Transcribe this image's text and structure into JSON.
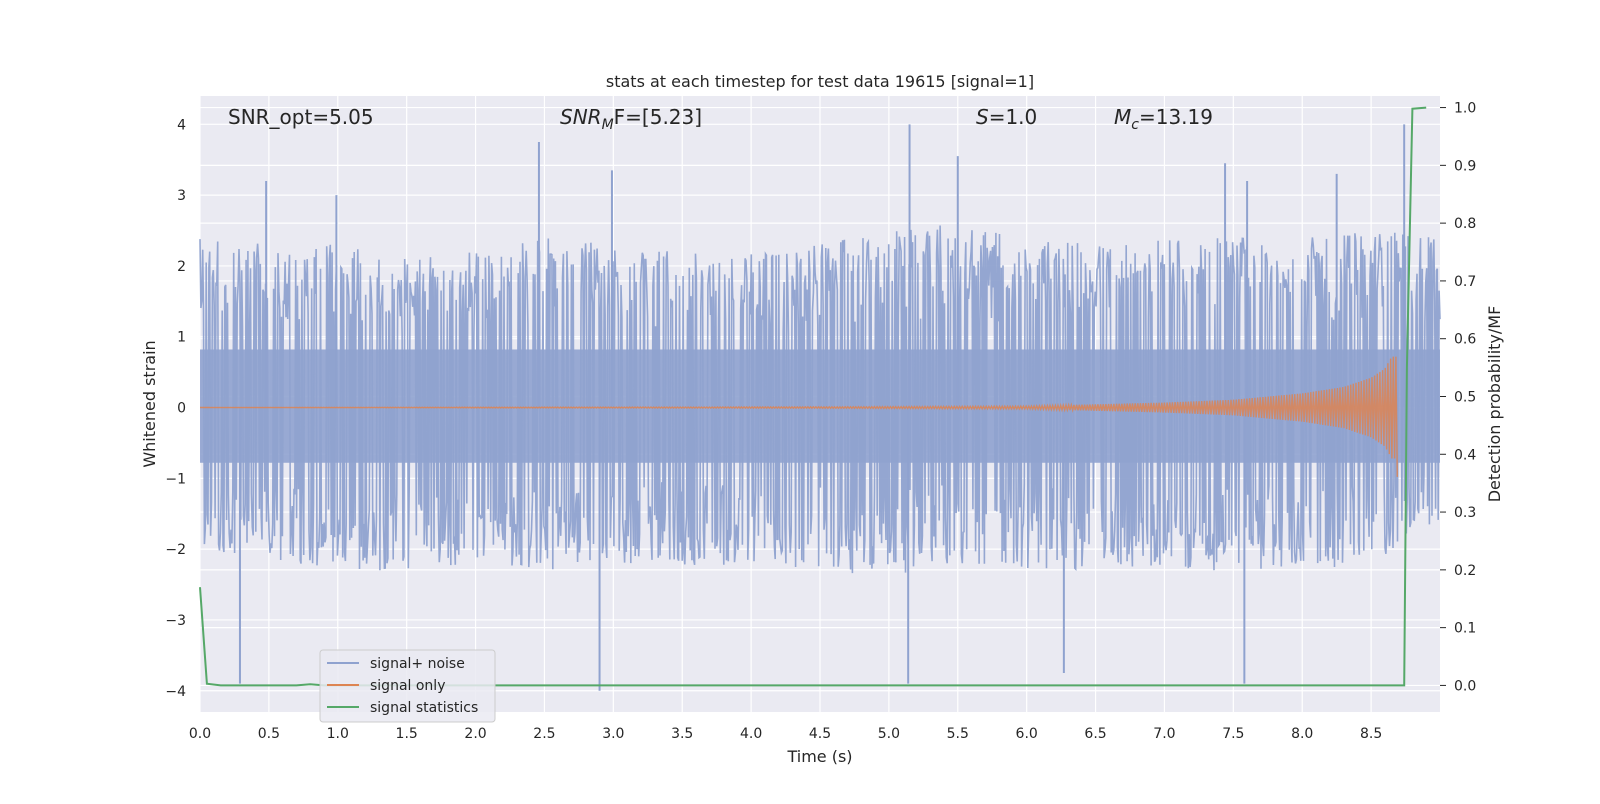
{
  "chart_data": {
    "type": "line",
    "title": "stats at each timestep for test data 19615 [signal=1]",
    "xlabel": "Time (s)",
    "ylabel": "Whitened strain",
    "ylabel_right": "Detection probability/MF",
    "xlim": [
      0.0,
      9.0
    ],
    "ylim": [
      -4.3,
      4.4
    ],
    "ylim_right": [
      -0.046,
      1.02
    ],
    "x_ticks": [
      "0.0",
      "0.5",
      "1.0",
      "1.5",
      "2.0",
      "2.5",
      "3.0",
      "3.5",
      "4.0",
      "4.5",
      "5.0",
      "5.5",
      "6.0",
      "6.5",
      "7.0",
      "7.5",
      "8.0",
      "8.5"
    ],
    "y_ticks": [
      "−4",
      "−3",
      "−2",
      "−1",
      "0",
      "1",
      "2",
      "3",
      "4"
    ],
    "y_right_ticks": [
      "0.0",
      "0.1",
      "0.2",
      "0.3",
      "0.4",
      "0.5",
      "0.6",
      "0.7",
      "0.8",
      "0.9",
      "1.0"
    ],
    "grid": true,
    "legend_position": "lower-left",
    "annotations": {
      "snr_opt": "SNR_opt=5.05",
      "snr_mf_main": "SNR",
      "snr_mf_sub": "M",
      "snr_mf_rest": "F=[5.23]",
      "s_main": "S",
      "s_rest": "=1.0",
      "mc_main": "M",
      "mc_sub": "c",
      "mc_rest": "=13.19"
    },
    "series": [
      {
        "name": "signal+ noise",
        "color": "#8fa2cf",
        "envelope_upper": [
          [
            0.0,
            2.4
          ],
          [
            0.5,
            2.3
          ],
          [
            1.0,
            2.3
          ],
          [
            1.5,
            2.1
          ],
          [
            2.0,
            2.2
          ],
          [
            2.5,
            2.4
          ],
          [
            3.0,
            2.3
          ],
          [
            3.5,
            2.2
          ],
          [
            4.0,
            2.2
          ],
          [
            4.5,
            2.3
          ],
          [
            5.0,
            2.5
          ],
          [
            5.5,
            2.6
          ],
          [
            6.0,
            2.4
          ],
          [
            6.5,
            2.3
          ],
          [
            7.0,
            2.4
          ],
          [
            7.5,
            2.4
          ],
          [
            8.0,
            2.4
          ],
          [
            8.5,
            2.5
          ],
          [
            9.0,
            2.5
          ]
        ],
        "envelope_lower": [
          [
            0.0,
            -2.0
          ],
          [
            0.5,
            -2.2
          ],
          [
            1.0,
            -2.3
          ],
          [
            1.5,
            -2.3
          ],
          [
            2.0,
            -2.2
          ],
          [
            2.5,
            -2.3
          ],
          [
            3.0,
            -2.2
          ],
          [
            3.5,
            -2.3
          ],
          [
            4.0,
            -2.2
          ],
          [
            4.5,
            -2.3
          ],
          [
            5.0,
            -2.4
          ],
          [
            5.5,
            -2.2
          ],
          [
            6.0,
            -2.3
          ],
          [
            6.5,
            -2.3
          ],
          [
            7.0,
            -2.3
          ],
          [
            7.5,
            -2.3
          ],
          [
            8.0,
            -2.3
          ],
          [
            8.5,
            -2.2
          ],
          [
            9.0,
            -1.6
          ]
        ],
        "spikes": [
          [
            0.29,
            -3.9
          ],
          [
            0.48,
            3.2
          ],
          [
            0.99,
            3.0
          ],
          [
            2.46,
            3.75
          ],
          [
            2.9,
            -4.0
          ],
          [
            2.99,
            3.35
          ],
          [
            5.14,
            -3.9
          ],
          [
            5.15,
            4.0
          ],
          [
            5.5,
            3.55
          ],
          [
            6.27,
            -3.75
          ],
          [
            7.44,
            3.45
          ],
          [
            7.58,
            -3.9
          ],
          [
            7.6,
            3.2
          ],
          [
            8.25,
            3.3
          ],
          [
            8.74,
            4.0
          ]
        ]
      },
      {
        "name": "signal only",
        "color": "#dd8452",
        "amplitude": [
          [
            0.0,
            0.0
          ],
          [
            4.5,
            0.01
          ],
          [
            6.0,
            0.02
          ],
          [
            7.0,
            0.07
          ],
          [
            7.5,
            0.11
          ],
          [
            8.0,
            0.2
          ],
          [
            8.3,
            0.29
          ],
          [
            8.5,
            0.42
          ],
          [
            8.6,
            0.55
          ],
          [
            8.65,
            0.72
          ],
          [
            8.68,
            0.72
          ],
          [
            8.69,
            -0.98
          ]
        ]
      },
      {
        "name": "signal statistics",
        "color": "#55a868",
        "points": [
          [
            0.0,
            0.17
          ],
          [
            0.05,
            0.003
          ],
          [
            0.15,
            0.0
          ],
          [
            0.7,
            0.0
          ],
          [
            0.8,
            0.002
          ],
          [
            0.9,
            0.0
          ],
          [
            8.74,
            0.0
          ],
          [
            8.76,
            0.55
          ],
          [
            8.8,
            0.998
          ],
          [
            8.9,
            1.0
          ]
        ]
      }
    ]
  }
}
